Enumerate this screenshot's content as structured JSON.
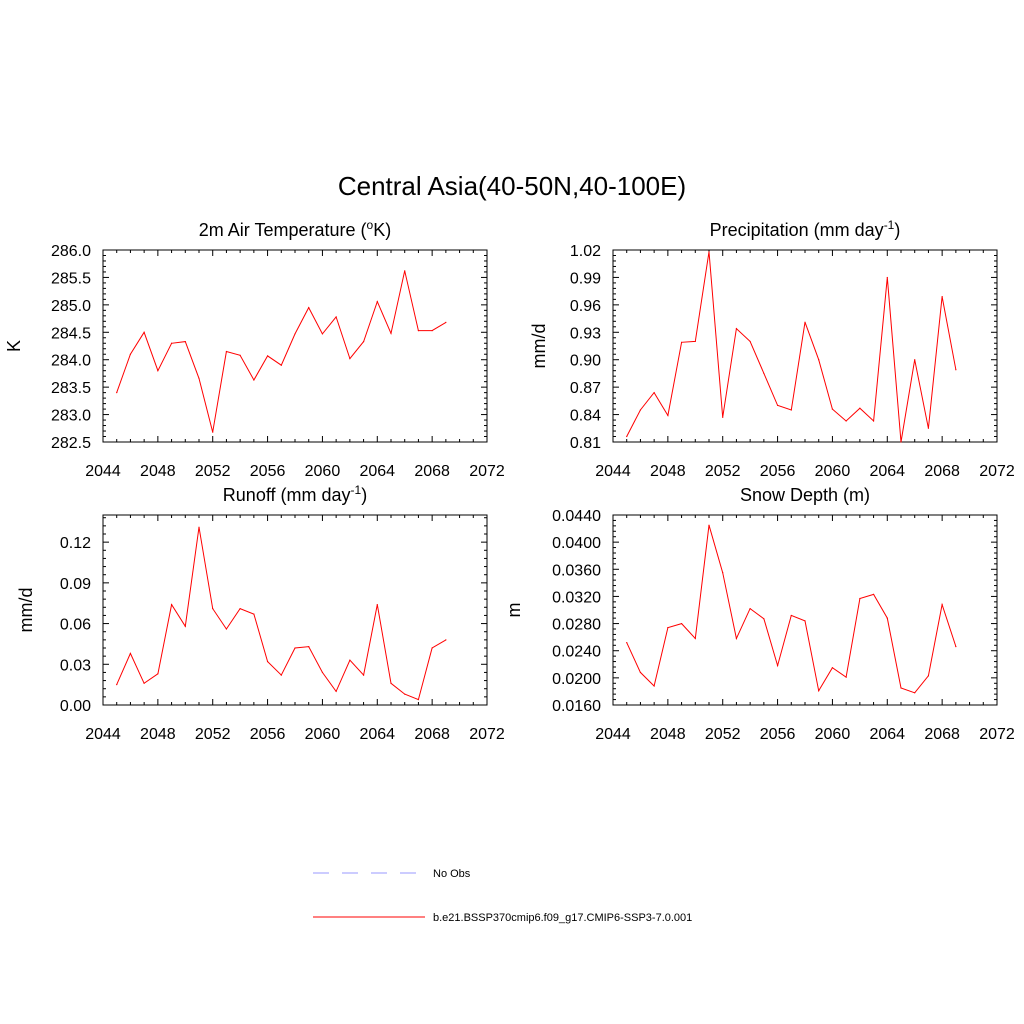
{
  "title": "Central Asia(40-50N,40-100E)",
  "colors": {
    "series": "#ff0000",
    "obs": "#9999ff",
    "axis": "#000000"
  },
  "legend": [
    {
      "label": "No Obs",
      "style": "dashed",
      "color": "#9999ff"
    },
    {
      "label": "b.e21.BSSP370cmip6.f09_g17.CMIP6-SSP3-7.0.001",
      "style": "solid",
      "color": "#ff0000"
    }
  ],
  "chart_data": [
    {
      "type": "line",
      "title_main": "2m Air Temperature (",
      "title_sup": "o",
      "title_tail": "K)",
      "ylabel": "K",
      "xlim": [
        2044,
        2072
      ],
      "ylim": [
        282.5,
        286.0
      ],
      "xticks": [
        2044,
        2048,
        2052,
        2056,
        2060,
        2064,
        2068,
        2072
      ],
      "yticks": [
        "282.5",
        "283.0",
        "283.5",
        "284.0",
        "284.5",
        "285.0",
        "285.5",
        "286.0"
      ],
      "x": [
        2045,
        2046,
        2047,
        2048,
        2049,
        2050,
        2051,
        2052,
        2053,
        2054,
        2055,
        2056,
        2057,
        2058,
        2059,
        2060,
        2061,
        2062,
        2063,
        2064,
        2065,
        2066,
        2067,
        2068,
        2069
      ],
      "y": [
        283.4,
        284.1,
        284.5,
        283.8,
        284.3,
        284.33,
        283.66,
        282.68,
        284.15,
        284.08,
        283.63,
        284.07,
        283.9,
        284.47,
        284.95,
        284.47,
        284.78,
        284.02,
        284.33,
        285.06,
        284.48,
        285.62,
        284.53,
        284.53,
        284.68
      ]
    },
    {
      "type": "line",
      "title_main": "Precipitation (mm day",
      "title_sup": "-1",
      "title_tail": ")",
      "ylabel": "mm/d",
      "xlim": [
        2044,
        2072
      ],
      "ylim": [
        0.81,
        1.02
      ],
      "xticks": [
        2044,
        2048,
        2052,
        2056,
        2060,
        2064,
        2068,
        2072
      ],
      "yticks": [
        "0.81",
        "0.84",
        "0.87",
        "0.90",
        "0.93",
        "0.96",
        "0.99",
        "1.02"
      ],
      "x": [
        2045,
        2046,
        2047,
        2048,
        2049,
        2050,
        2051,
        2052,
        2053,
        2054,
        2055,
        2056,
        2057,
        2058,
        2059,
        2060,
        2061,
        2062,
        2063,
        2064,
        2065,
        2066,
        2067,
        2068,
        2069
      ],
      "y": [
        0.816,
        0.845,
        0.864,
        0.839,
        0.919,
        0.92,
        1.018,
        0.837,
        0.934,
        0.92,
        0.885,
        0.85,
        0.845,
        0.941,
        0.9,
        0.846,
        0.833,
        0.847,
        0.833,
        0.99,
        0.81,
        0.9,
        0.825,
        0.969,
        0.889
      ]
    },
    {
      "type": "line",
      "title_main": "Runoff (mm day",
      "title_sup": "-1",
      "title_tail": ")",
      "ylabel": "mm/d",
      "xlim": [
        2044,
        2072
      ],
      "ylim": [
        0.0,
        0.14
      ],
      "xticks": [
        2044,
        2048,
        2052,
        2056,
        2060,
        2064,
        2068,
        2072
      ],
      "yticks": [
        "0.00",
        "0.03",
        "0.06",
        "0.09",
        "0.12"
      ],
      "x": [
        2045,
        2046,
        2047,
        2048,
        2049,
        2050,
        2051,
        2052,
        2053,
        2054,
        2055,
        2056,
        2057,
        2058,
        2059,
        2060,
        2061,
        2062,
        2063,
        2064,
        2065,
        2066,
        2067,
        2068,
        2069
      ],
      "y": [
        0.015,
        0.038,
        0.016,
        0.023,
        0.074,
        0.058,
        0.131,
        0.071,
        0.056,
        0.071,
        0.067,
        0.032,
        0.022,
        0.042,
        0.043,
        0.024,
        0.01,
        0.033,
        0.022,
        0.074,
        0.016,
        0.008,
        0.004,
        0.042,
        0.048
      ]
    },
    {
      "type": "line",
      "title_main": "Snow Depth (m)",
      "title_sup": "",
      "title_tail": "",
      "ylabel": "m",
      "xlim": [
        2044,
        2072
      ],
      "ylim": [
        0.016,
        0.044
      ],
      "xticks": [
        2044,
        2048,
        2052,
        2056,
        2060,
        2064,
        2068,
        2072
      ],
      "yticks": [
        "0.0160",
        "0.0200",
        "0.0240",
        "0.0280",
        "0.0320",
        "0.0360",
        "0.0400",
        "0.0440"
      ],
      "x": [
        2045,
        2046,
        2047,
        2048,
        2049,
        2050,
        2051,
        2052,
        2053,
        2054,
        2055,
        2056,
        2057,
        2058,
        2059,
        2060,
        2061,
        2062,
        2063,
        2064,
        2065,
        2066,
        2067,
        2068,
        2069
      ],
      "y": [
        0.0252,
        0.0208,
        0.0188,
        0.0274,
        0.028,
        0.0258,
        0.0425,
        0.0355,
        0.0258,
        0.0302,
        0.0287,
        0.0218,
        0.0292,
        0.0284,
        0.0181,
        0.0215,
        0.0201,
        0.0317,
        0.0323,
        0.0288,
        0.0185,
        0.0178,
        0.0203,
        0.0308,
        0.0246
      ]
    }
  ]
}
